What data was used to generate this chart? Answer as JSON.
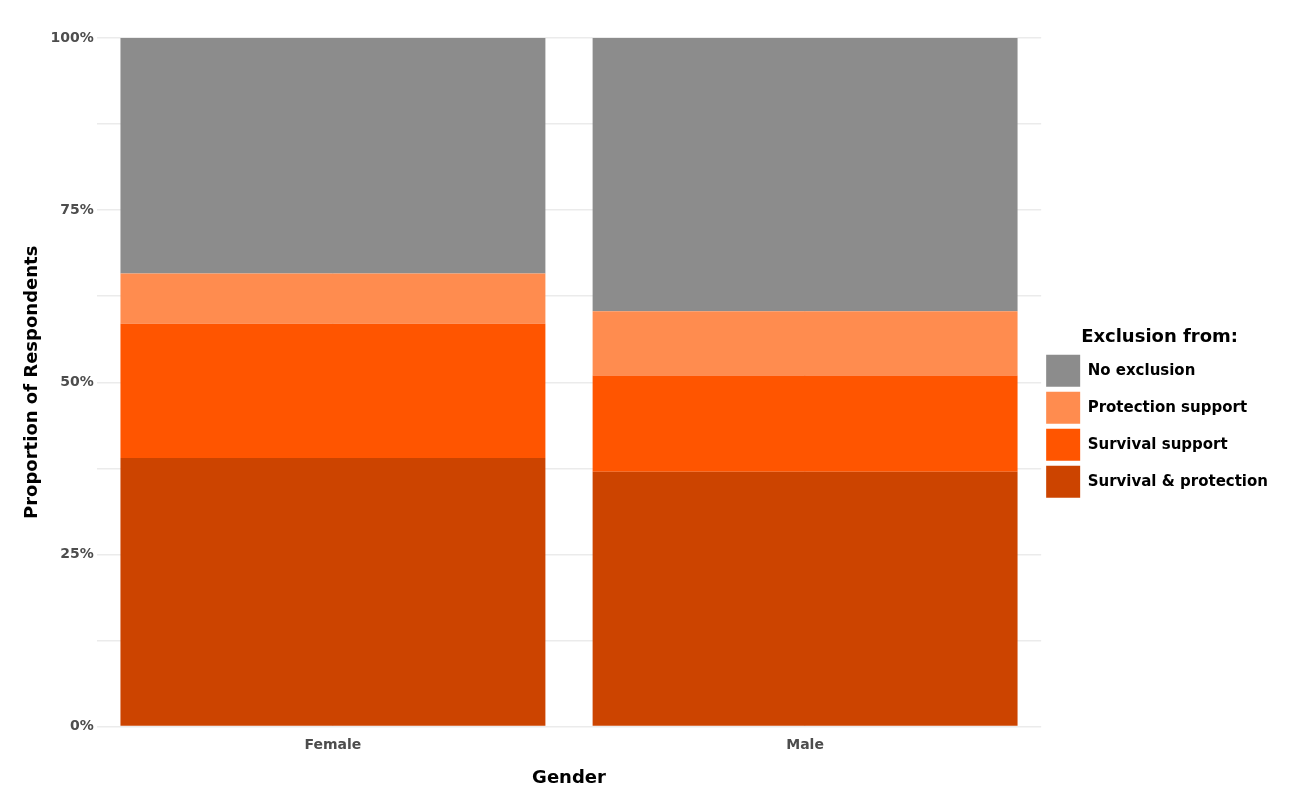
{
  "chart_data": {
    "type": "bar",
    "stacked": true,
    "xlabel": "Gender",
    "ylabel": "Proportion of Respondents",
    "legend_title": "Exclusion from:",
    "legend": "right",
    "grid": true,
    "categories": [
      "Female",
      "Male"
    ],
    "series": [
      {
        "name": "Survival & protection",
        "color": "#cc4400",
        "values": [
          39.0,
          37.0
        ]
      },
      {
        "name": "Survival support",
        "color": "#ff5500",
        "values": [
          19.5,
          14.0
        ]
      },
      {
        "name": "Protection support",
        "color": "#ff8c4f",
        "values": [
          7.3,
          9.3
        ]
      },
      {
        "name": "No exclusion",
        "color": "#8c8c8c",
        "values": [
          34.2,
          39.7
        ]
      }
    ],
    "ylim": [
      0,
      100
    ],
    "yticks": [
      {
        "value": 0,
        "label": "0%"
      },
      {
        "value": 12.5,
        "label": null
      },
      {
        "value": 25,
        "label": "25%"
      },
      {
        "value": 37.5,
        "label": null
      },
      {
        "value": 50,
        "label": "50%"
      },
      {
        "value": 62.5,
        "label": null
      },
      {
        "value": 75,
        "label": "75%"
      },
      {
        "value": 87.5,
        "label": null
      },
      {
        "value": 100,
        "label": "100%"
      }
    ]
  }
}
